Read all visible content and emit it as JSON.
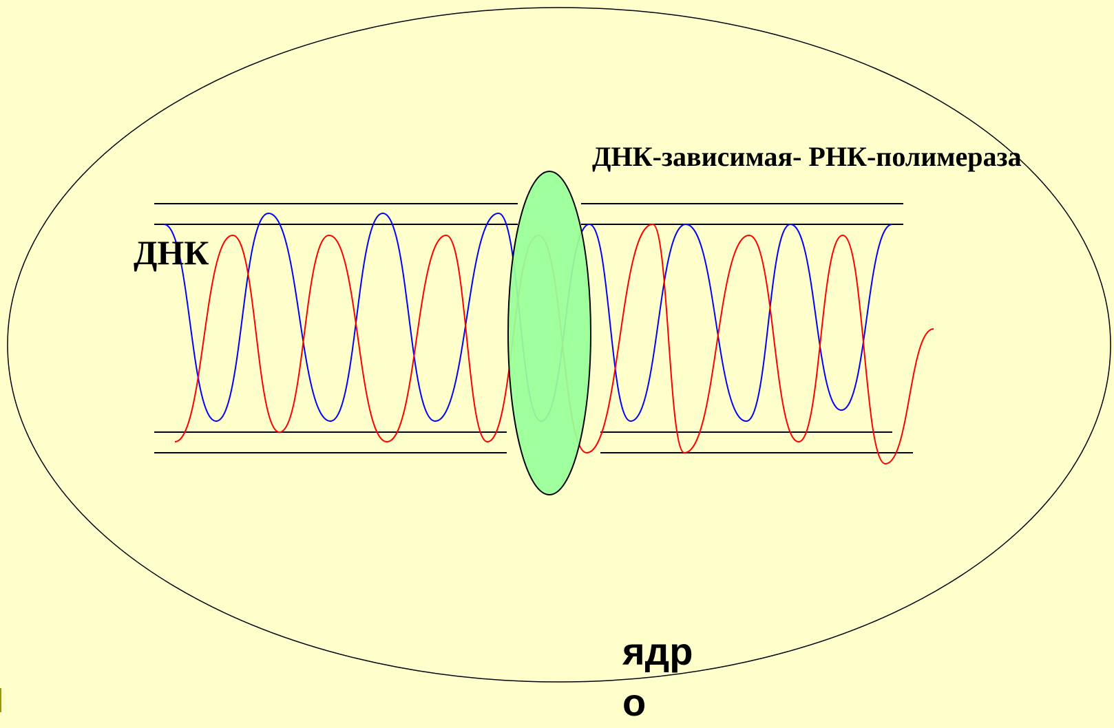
{
  "labels": {
    "polymerase": "ДНК-зависимая- РНК-полимераза",
    "dna": "ДНК",
    "nucleus_line1": "ядр",
    "nucleus_line2": "о"
  },
  "colors": {
    "background": "#ffffcc",
    "strand_a": "#0000ff",
    "strand_b": "#ff0000",
    "polymerase_fill": "#99ff99",
    "outline": "#000000"
  }
}
